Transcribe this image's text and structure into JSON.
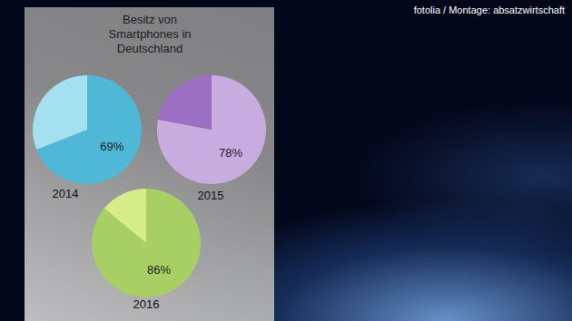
{
  "title": "Besitz von Smartphones in Deutschland",
  "credit": "fotolia / Montage: absatzwirtschaft",
  "chart_data": [
    {
      "type": "pie",
      "title": "2014",
      "values": [
        69,
        31
      ],
      "value_labels": [
        "69%",
        null
      ],
      "data_labels": true,
      "colors": [
        "#4fb8d6",
        "#a3e1f1"
      ]
    },
    {
      "type": "pie",
      "title": "2015",
      "values": [
        78,
        22
      ],
      "value_labels": [
        "78%",
        null
      ],
      "data_labels": true,
      "colors": [
        "#c9acdf",
        "#9b6fc1"
      ]
    },
    {
      "type": "pie",
      "title": "2016",
      "values": [
        86,
        14
      ],
      "value_labels": [
        "86%",
        null
      ],
      "data_labels": true,
      "colors": [
        "#a8cf64",
        "#d6ec88"
      ]
    }
  ]
}
